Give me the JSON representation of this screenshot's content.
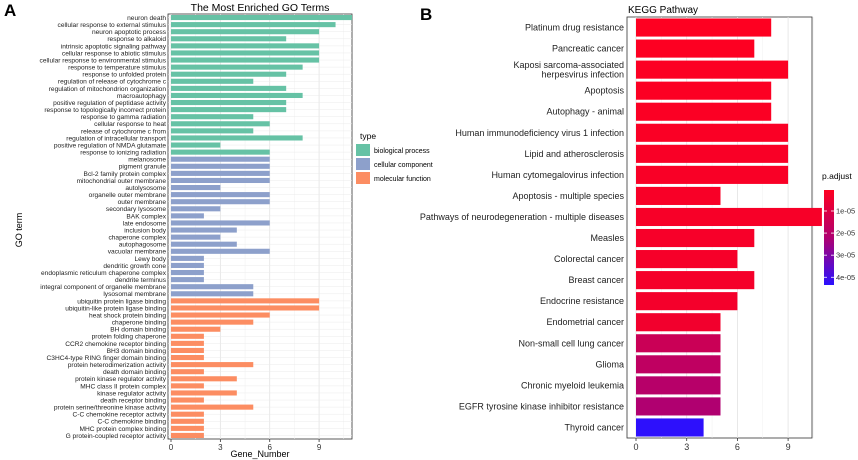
{
  "panel_a_letter": "A",
  "panel_b_letter": "B",
  "chart_data": [
    {
      "type": "bar",
      "orientation": "horizontal",
      "title": "The Most Enriched GO Terms",
      "xlabel": "Gene_Number",
      "ylabel": "GO term",
      "xlim": [
        0,
        11
      ],
      "xticks": [
        0,
        3,
        6,
        9
      ],
      "legend": {
        "title": "type",
        "placement": "right",
        "entries": [
          {
            "label": "biological process",
            "color": "#66c2a5"
          },
          {
            "label": "cellular component",
            "color": "#8da0cb"
          },
          {
            "label": "molecular function",
            "color": "#fc8d62"
          }
        ]
      },
      "categories": [
        "neuron death",
        "cellular response to external stimulus",
        "neuron apoptotic process",
        "response to alkaloid",
        "intrinsic apoptotic signaling pathway",
        "cellular response to abiotic stimulus",
        "cellular response to environmental stimulus",
        "response to temperature stimulus",
        "response to unfolded protein",
        "regulation of release of cytochrome c",
        "regulation of mitochondrion organization",
        "macroautophagy",
        "positive regulation of peptidase activity",
        "response to topologically incorrect protein",
        "response to gamma radiation",
        "cellular response to heat",
        "release of cytochrome c from",
        "regulation of intracellular transport",
        "positive regulation of NMDA glutamate",
        "response to ionizing radiation",
        "melanosome",
        "pigment granule",
        "Bcl-2 family protein complex",
        "mitochondrial outer membrane",
        "autolysosome",
        "organelle outer membrane",
        "outer membrane",
        "secondary lysosome",
        "BAK complex",
        "late endosome",
        "inclusion body",
        "chaperone complex",
        "autophagosome",
        "vacuolar membrane",
        "Lewy body",
        "dendritic growth cone",
        "endoplasmic reticulum chaperone complex",
        "dendrite terminus",
        "integral component of organelle membrane",
        "lysosomal membrane",
        "ubiquitin protein ligase binding",
        "ubiquitin-like protein ligase binding",
        "heat shock protein binding",
        "chaperone binding",
        "BH domain binding",
        "protein folding chaperone",
        "CCR2 chemokine receptor binding",
        "BH3 domain binding",
        "C3HC4-type RING finger domain binding",
        "protein heterodimerization activity",
        "death domain binding",
        "protein kinase regulator activity",
        "MHC class II protein complex",
        "kinase regulator activity",
        "death receptor binding",
        "protein serine/threonine kinase activity",
        "C-C chemokine receptor activity",
        "C-C chemokine binding",
        "MHC protein complex binding",
        "G protein-coupled receptor activity"
      ],
      "groups": [
        "biological process",
        "biological process",
        "biological process",
        "biological process",
        "biological process",
        "biological process",
        "biological process",
        "biological process",
        "biological process",
        "biological process",
        "biological process",
        "biological process",
        "biological process",
        "biological process",
        "biological process",
        "biological process",
        "biological process",
        "biological process",
        "biological process",
        "biological process",
        "cellular component",
        "cellular component",
        "cellular component",
        "cellular component",
        "cellular component",
        "cellular component",
        "cellular component",
        "cellular component",
        "cellular component",
        "cellular component",
        "cellular component",
        "cellular component",
        "cellular component",
        "cellular component",
        "cellular component",
        "cellular component",
        "cellular component",
        "cellular component",
        "cellular component",
        "cellular component",
        "molecular function",
        "molecular function",
        "molecular function",
        "molecular function",
        "molecular function",
        "molecular function",
        "molecular function",
        "molecular function",
        "molecular function",
        "molecular function",
        "molecular function",
        "molecular function",
        "molecular function",
        "molecular function",
        "molecular function",
        "molecular function",
        "molecular function",
        "molecular function",
        "molecular function",
        "molecular function"
      ],
      "values": [
        11,
        10,
        9,
        7,
        9,
        9,
        9,
        8,
        7,
        5,
        7,
        8,
        7,
        7,
        5,
        6,
        5,
        8,
        3,
        6,
        6,
        6,
        6,
        6,
        3,
        6,
        6,
        3,
        2,
        6,
        4,
        3,
        4,
        6,
        2,
        2,
        2,
        2,
        5,
        5,
        9,
        9,
        6,
        5,
        3,
        2,
        2,
        2,
        2,
        5,
        2,
        4,
        2,
        4,
        2,
        5,
        2,
        2,
        2,
        2
      ]
    },
    {
      "type": "bar",
      "orientation": "horizontal",
      "title": "KEGG Pathway",
      "xlabel": "",
      "ylabel": "",
      "xlim": [
        0,
        11
      ],
      "xticks": [
        0,
        3,
        6,
        9
      ],
      "legend": {
        "title": "p.adjust",
        "placement": "right",
        "ticks": [
          {
            "label": "1e-05",
            "value": 1e-05
          },
          {
            "label": "2e-05",
            "value": 2e-05
          },
          {
            "label": "3e-05",
            "value": 3e-05
          },
          {
            "label": "4e-05",
            "value": 4e-05
          }
        ],
        "range": [
          5e-07,
          4.35e-05
        ],
        "color_low": "#ff0000",
        "color_high": "#0000ff"
      },
      "categories": [
        "Platinum drug resistance",
        "Pancreatic cancer",
        "Kaposi sarcoma-associated\nherpesvirus infection",
        "Apoptosis",
        "Autophagy - animal",
        "Human immunodeficiency virus 1 infection",
        "Lipid and atherosclerosis",
        "Human cytomegalovirus infection",
        "Apoptosis - multiple species",
        "Pathways of neurodegeneration - multiple diseases",
        "Measles",
        "Colorectal cancer",
        "Breast cancer",
        "Endocrine resistance",
        "Endometrial cancer",
        "Non-small cell lung cancer",
        "Glioma",
        "Chronic myeloid leukemia",
        "EGFR tyrosine kinase inhibitor resistance",
        "Thyroid cancer"
      ],
      "values": [
        8,
        7,
        9,
        8,
        8,
        9,
        9,
        9,
        5,
        11,
        7,
        6,
        7,
        6,
        5,
        5,
        5,
        5,
        5,
        4
      ],
      "p_adjust": [
        8e-07,
        1e-06,
        1.2e-06,
        1.4e-06,
        1.6e-06,
        1.8e-06,
        2e-06,
        2.2e-06,
        2.4e-06,
        2.6e-06,
        2.8e-06,
        3e-06,
        3.2e-06,
        3.5e-06,
        4e-06,
        1.5e-05,
        1.8e-05,
        2e-05,
        2.2e-05,
        4.3e-05
      ]
    }
  ]
}
